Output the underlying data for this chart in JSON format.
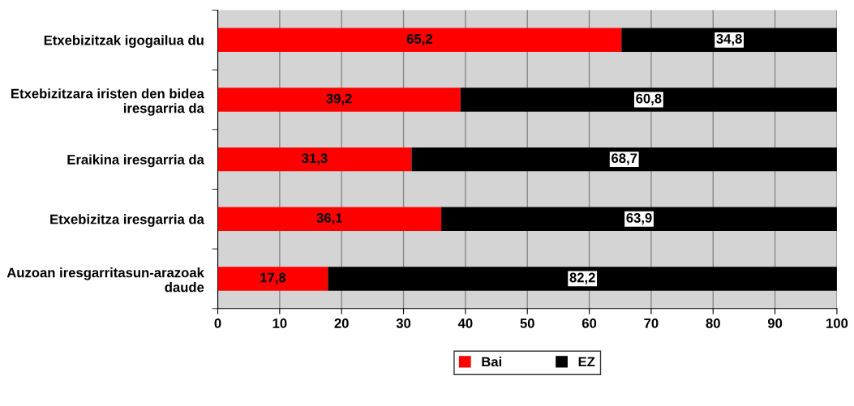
{
  "chart_data": {
    "type": "bar",
    "orientation": "horizontal",
    "stacked": true,
    "categories": [
      "Etxebizitzak igogailua du",
      "Etxebizitzara iristen den bidea iresgarria da",
      "Eraikina iresgarria da",
      "Etxebizitza iresgarria da",
      "Auzoan iresgarritasun-arazoak daude"
    ],
    "series": [
      {
        "name": "Bai",
        "color": "#ff0000",
        "values": [
          65.2,
          39.2,
          31.3,
          36.1,
          17.8
        ],
        "value_labels": [
          "65,2",
          "39,2",
          "31,3",
          "36,1",
          "17,8"
        ]
      },
      {
        "name": "EZ",
        "color": "#000000",
        "values": [
          34.8,
          60.8,
          68.7,
          63.9,
          82.2
        ],
        "value_labels": [
          "34,8",
          "60,8",
          "68,7",
          "63,9",
          "82,2"
        ]
      }
    ],
    "xlim": [
      0,
      100
    ],
    "xticks": [
      0,
      10,
      20,
      30,
      40,
      50,
      60,
      70,
      80,
      90,
      100
    ],
    "grid": "x",
    "legend": "bottom"
  }
}
